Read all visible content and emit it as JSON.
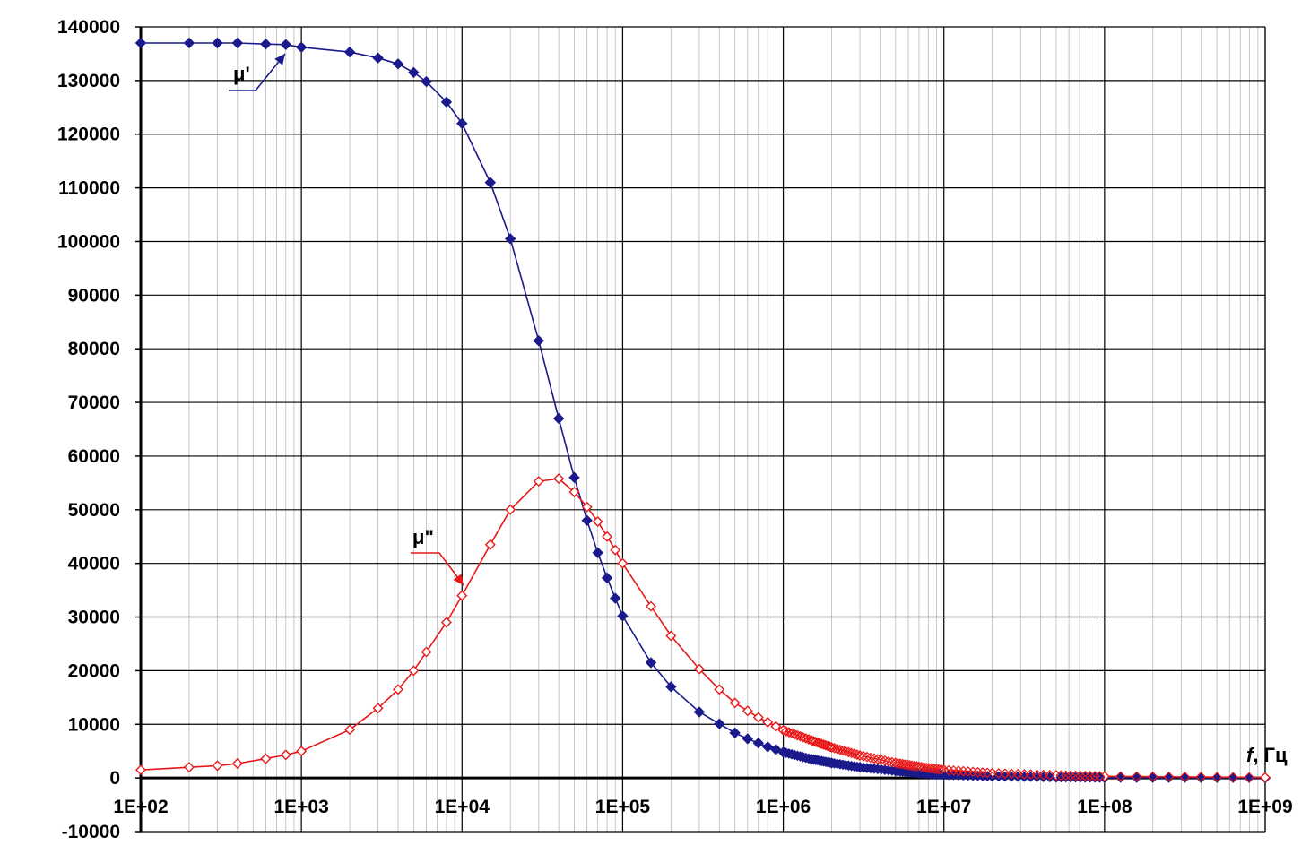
{
  "chart_data": {
    "type": "scatter",
    "x_scale": "log",
    "xlim": [
      100,
      1000000000
    ],
    "ylim": [
      -10000,
      140000
    ],
    "grid": true,
    "y_ticks": [
      -10000,
      0,
      10000,
      20000,
      30000,
      40000,
      50000,
      60000,
      70000,
      80000,
      90000,
      100000,
      110000,
      120000,
      130000,
      140000
    ],
    "x_tick_labels": [
      "1E+02",
      "1E+03",
      "1E+04",
      "1E+05",
      "1E+06",
      "1E+07",
      "1E+08",
      "1E+09"
    ],
    "xlabel": {
      "symbol": "f",
      "unit": ", Гц"
    },
    "series": [
      {
        "name": "μ'",
        "color": "#1a1a8c",
        "marker": "filled-diamond",
        "x": [
          100,
          200,
          300,
          400,
          600,
          800,
          1000,
          2000,
          3000,
          4000,
          5000,
          6000,
          8000,
          10000,
          15000,
          20000,
          30000,
          40000,
          50000,
          60000,
          70000,
          80000,
          90000,
          100000,
          150000,
          200000,
          300000,
          400000,
          500000,
          600000,
          700000,
          800000,
          900000,
          1000000,
          1500000,
          2000000,
          3000000,
          5000000,
          7000000,
          10000000,
          20000000,
          50000000,
          100000000,
          1000000000
        ],
        "y": [
          137000,
          137000,
          137000,
          137000,
          136800,
          136700,
          136200,
          135300,
          134200,
          133100,
          131500,
          129800,
          126000,
          122000,
          111000,
          100500,
          81500,
          67000,
          56000,
          48000,
          42000,
          37300,
          33500,
          30200,
          21500,
          17000,
          12300,
          10100,
          8400,
          7300,
          6500,
          5800,
          5300,
          4800,
          3500,
          2800,
          2000,
          1300,
          900,
          600,
          300,
          130,
          60,
          5
        ]
      },
      {
        "name": "μ\"",
        "color": "#e81818",
        "marker": "open-diamond",
        "x": [
          100,
          200,
          300,
          400,
          600,
          800,
          1000,
          2000,
          3000,
          4000,
          5000,
          6000,
          8000,
          10000,
          15000,
          20000,
          30000,
          40000,
          50000,
          60000,
          70000,
          80000,
          90000,
          100000,
          150000,
          200000,
          300000,
          400000,
          500000,
          600000,
          700000,
          800000,
          900000,
          1000000,
          1500000,
          2000000,
          3000000,
          5000000,
          7000000,
          10000000,
          20000000,
          50000000,
          100000000,
          1000000000
        ],
        "y": [
          1500,
          2000,
          2300,
          2700,
          3600,
          4300,
          5000,
          9000,
          13000,
          16500,
          20000,
          23500,
          29000,
          34000,
          43500,
          50000,
          55300,
          55800,
          53300,
          50500,
          47800,
          45000,
          42500,
          40000,
          32000,
          26500,
          20300,
          16500,
          14000,
          12500,
          11300,
          10400,
          9600,
          8900,
          7000,
          5700,
          4200,
          2800,
          2100,
          1500,
          900,
          500,
          300,
          100
        ]
      }
    ]
  }
}
